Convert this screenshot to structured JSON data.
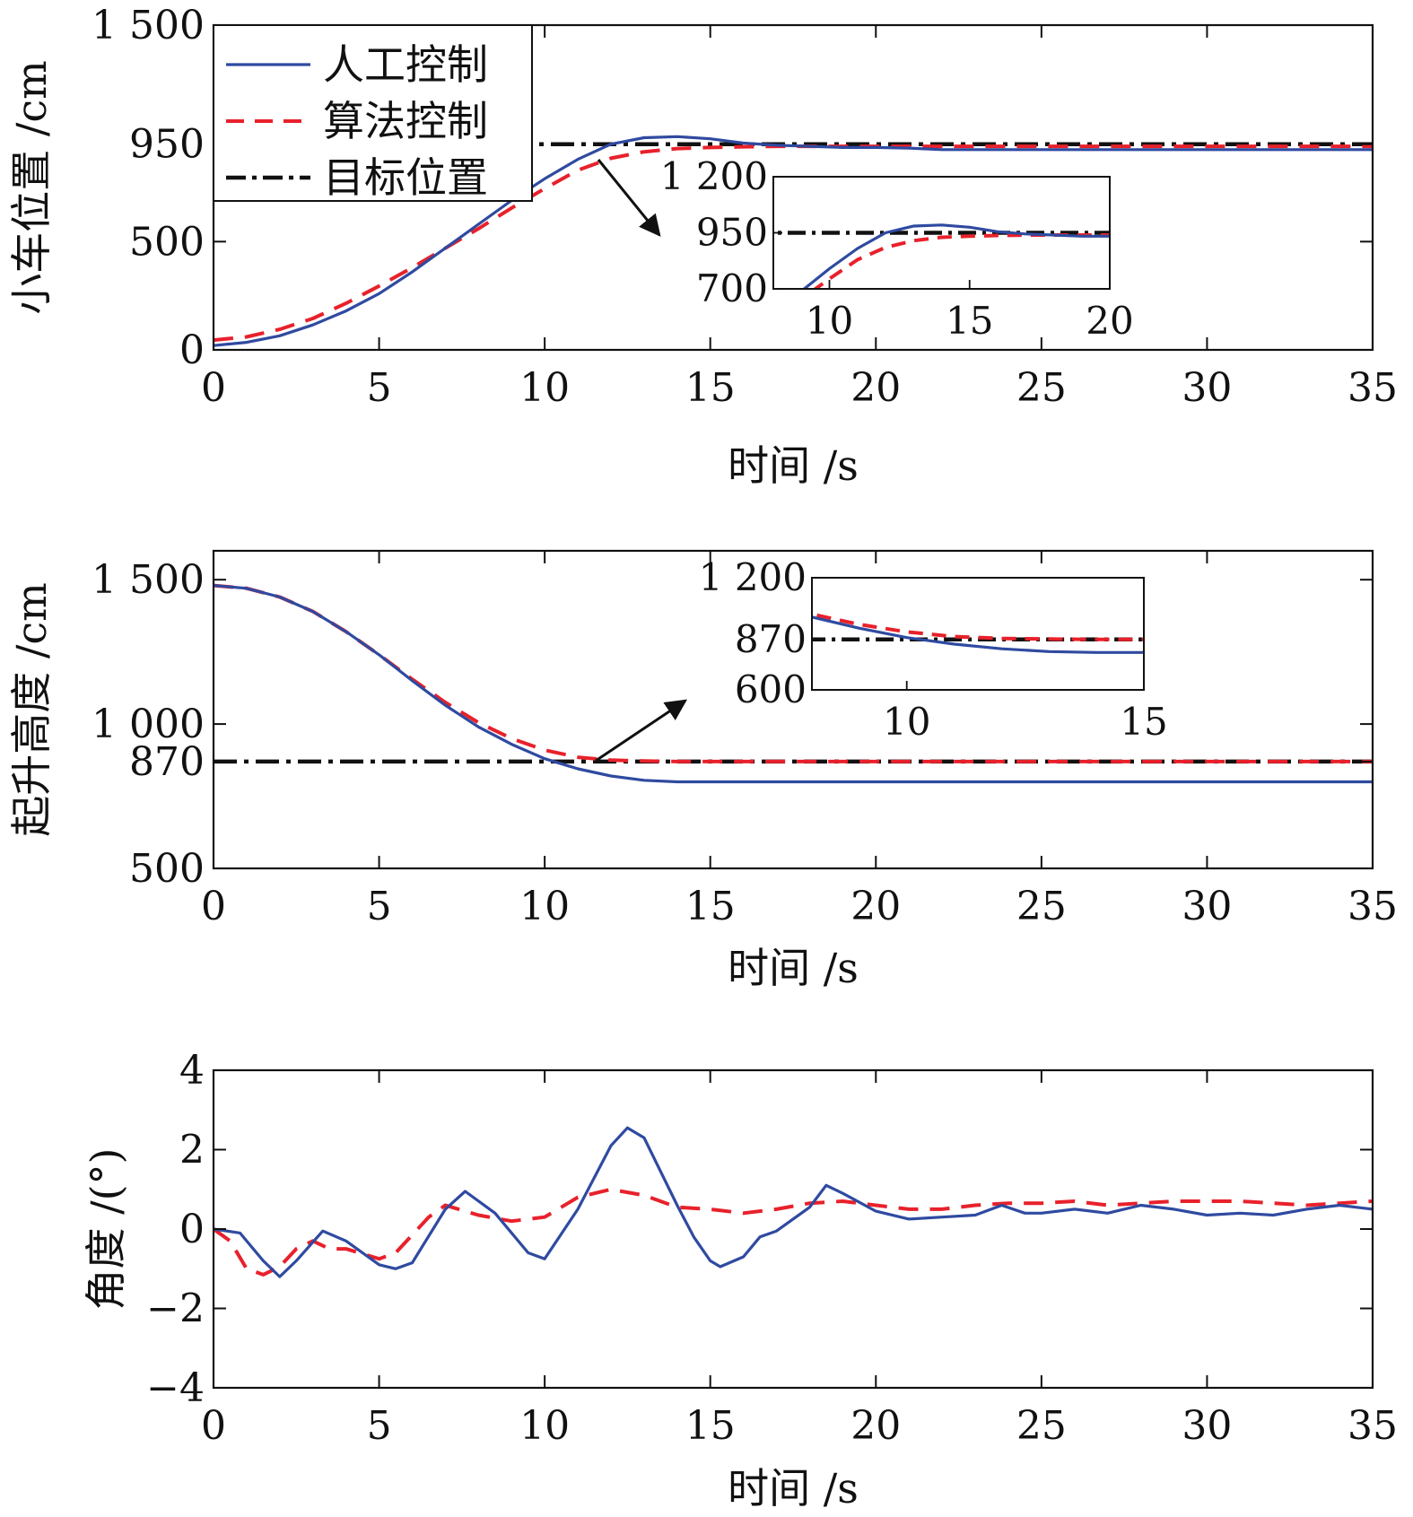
{
  "colors": {
    "manual": "#2F4AA0",
    "algorithm": "#E8212B",
    "target": "#111111"
  },
  "legend": {
    "manual": "人工控制",
    "algorithm": "算法控制",
    "target": "目标位置",
    "placement": "top-left"
  },
  "chart_data": [
    {
      "type": "line",
      "xlabel": "时间 /s",
      "ylabel": "小车位置 /cm",
      "xlim": [
        0,
        35
      ],
      "ylim": [
        0,
        1500
      ],
      "xticks": [
        0,
        5,
        10,
        15,
        20,
        25,
        30,
        35
      ],
      "xtick_labels": [
        "0",
        "5",
        "10",
        "15",
        "20",
        "25",
        "30",
        "35"
      ],
      "yticks": [
        0,
        500,
        950,
        1500
      ],
      "ytick_labels": [
        "0",
        "500",
        "950",
        "1 500"
      ],
      "series": [
        {
          "name": "人工控制",
          "key": "manual",
          "x": [
            0,
            1,
            2,
            3,
            4,
            5,
            6,
            7,
            8,
            9,
            10,
            11,
            12,
            13,
            14,
            15,
            16,
            17,
            18,
            19,
            20,
            21,
            22,
            23,
            24,
            25,
            26,
            27,
            28,
            29,
            30,
            31,
            32,
            33,
            34,
            35
          ],
          "y": [
            20,
            35,
            65,
            115,
            180,
            260,
            360,
            470,
            580,
            690,
            790,
            880,
            950,
            980,
            985,
            975,
            955,
            945,
            940,
            935,
            935,
            932,
            925,
            925,
            925,
            925,
            925,
            925,
            925,
            925,
            925,
            925,
            925,
            925,
            925,
            925
          ]
        },
        {
          "name": "算法控制",
          "key": "algorithm",
          "x": [
            0,
            1,
            2,
            3,
            4,
            5,
            6,
            7,
            8,
            9,
            10,
            11,
            12,
            13,
            14,
            15,
            16,
            17,
            18,
            19,
            20,
            21,
            22,
            23,
            24,
            25,
            26,
            27,
            28,
            29,
            30,
            31,
            32,
            33,
            34,
            35
          ],
          "y": [
            45,
            60,
            95,
            145,
            215,
            295,
            380,
            470,
            560,
            655,
            745,
            830,
            885,
            915,
            930,
            935,
            938,
            940,
            940,
            940,
            940,
            940,
            940,
            940,
            940,
            940,
            940,
            940,
            940,
            940,
            940,
            940,
            940,
            940,
            940,
            940
          ]
        },
        {
          "name": "目标位置",
          "key": "target",
          "x": [
            0,
            35
          ],
          "y": [
            950,
            950
          ]
        }
      ],
      "inset": {
        "xlim": [
          8,
          20
        ],
        "ylim": [
          700,
          1200
        ],
        "xticks": [
          10,
          15,
          20
        ],
        "xtick_labels": [
          "10",
          "15",
          "20"
        ],
        "yticks": [
          700,
          950,
          1200
        ],
        "ytick_labels": [
          "700",
          "950",
          "1 200"
        ]
      }
    },
    {
      "type": "line",
      "xlabel": "时间 /s",
      "ylabel": "起升高度 /cm",
      "xlim": [
        0,
        35
      ],
      "ylim": [
        500,
        1600
      ],
      "xticks": [
        0,
        5,
        10,
        15,
        20,
        25,
        30,
        35
      ],
      "xtick_labels": [
        "0",
        "5",
        "10",
        "15",
        "20",
        "25",
        "30",
        "35"
      ],
      "yticks": [
        500,
        870,
        1000,
        1500
      ],
      "ytick_labels": [
        "500",
        "870",
        "1 000",
        "1 500"
      ],
      "series": [
        {
          "name": "人工控制",
          "key": "manual",
          "x": [
            0,
            1,
            2,
            3,
            4,
            5,
            6,
            7,
            8,
            9,
            10,
            11,
            12,
            13,
            14,
            15,
            20,
            25,
            30,
            35
          ],
          "y": [
            1480,
            1470,
            1440,
            1390,
            1320,
            1240,
            1150,
            1065,
            990,
            930,
            880,
            845,
            820,
            805,
            800,
            800,
            800,
            800,
            800,
            800
          ]
        },
        {
          "name": "算法控制",
          "key": "algorithm",
          "x": [
            0,
            1,
            2,
            3,
            4,
            5,
            6,
            7,
            8,
            9,
            10,
            11,
            12,
            13,
            14,
            15,
            20,
            25,
            30,
            35
          ],
          "y": [
            1480,
            1470,
            1440,
            1390,
            1320,
            1240,
            1155,
            1075,
            1005,
            950,
            910,
            885,
            875,
            872,
            870,
            870,
            870,
            870,
            870,
            870
          ]
        },
        {
          "name": "目标位置",
          "key": "target",
          "x": [
            0,
            35
          ],
          "y": [
            870,
            870
          ]
        }
      ],
      "inset": {
        "xlim": [
          8,
          15
        ],
        "ylim": [
          600,
          1200
        ],
        "xticks": [
          10,
          15
        ],
        "xtick_labels": [
          "10",
          "15"
        ],
        "yticks": [
          600,
          870,
          1200
        ],
        "ytick_labels": [
          "600",
          "870",
          "1 200"
        ]
      }
    },
    {
      "type": "line",
      "xlabel": "时间 /s",
      "ylabel": "角度 /(°)",
      "xlim": [
        0,
        35
      ],
      "ylim": [
        -4,
        4
      ],
      "xticks": [
        0,
        5,
        10,
        15,
        20,
        25,
        30,
        35
      ],
      "xtick_labels": [
        "0",
        "5",
        "10",
        "15",
        "20",
        "25",
        "30",
        "35"
      ],
      "yticks": [
        -4,
        -2,
        0,
        2,
        4
      ],
      "ytick_labels": [
        "−4",
        "−2",
        "0",
        "2",
        "4"
      ],
      "series": [
        {
          "name": "人工控制",
          "key": "manual",
          "x": [
            0,
            0.8,
            1.5,
            2,
            2.5,
            3.3,
            4,
            5,
            5.5,
            6,
            7,
            7.6,
            8.5,
            9.5,
            10,
            11,
            12,
            12.5,
            13,
            14,
            14.5,
            15,
            15.3,
            16,
            16.5,
            17,
            18,
            18.5,
            19,
            20,
            21,
            22,
            23,
            23.8,
            24.5,
            25,
            26,
            27,
            28,
            29,
            30,
            31,
            32,
            33,
            34,
            35
          ],
          "y": [
            0,
            -0.1,
            -0.8,
            -1.2,
            -0.8,
            -0.05,
            -0.3,
            -0.9,
            -1.0,
            -0.85,
            0.5,
            0.95,
            0.4,
            -0.6,
            -0.75,
            0.5,
            2.1,
            2.55,
            2.3,
            0.6,
            -0.2,
            -0.8,
            -0.95,
            -0.7,
            -0.2,
            -0.05,
            0.55,
            1.1,
            0.9,
            0.45,
            0.25,
            0.3,
            0.35,
            0.6,
            0.4,
            0.4,
            0.5,
            0.4,
            0.6,
            0.5,
            0.35,
            0.4,
            0.35,
            0.5,
            0.6,
            0.5
          ]
        },
        {
          "name": "算法控制",
          "key": "algorithm",
          "x": [
            0,
            0.5,
            1,
            1.5,
            2,
            2.5,
            3,
            3.5,
            4,
            5,
            5.5,
            6,
            6.5,
            7,
            8,
            9,
            10,
            11,
            12,
            13,
            14,
            15,
            16,
            17,
            18,
            19,
            20,
            21,
            22,
            23,
            24,
            25,
            26,
            27,
            28,
            29,
            30,
            31,
            32,
            33,
            34,
            35
          ],
          "y": [
            0,
            -0.3,
            -1.0,
            -1.15,
            -0.95,
            -0.5,
            -0.3,
            -0.5,
            -0.5,
            -0.75,
            -0.6,
            -0.15,
            0.3,
            0.6,
            0.35,
            0.2,
            0.3,
            0.8,
            1.0,
            0.85,
            0.55,
            0.5,
            0.4,
            0.5,
            0.65,
            0.7,
            0.6,
            0.5,
            0.5,
            0.6,
            0.65,
            0.65,
            0.7,
            0.6,
            0.65,
            0.7,
            0.7,
            0.7,
            0.65,
            0.6,
            0.65,
            0.7
          ]
        }
      ]
    }
  ]
}
